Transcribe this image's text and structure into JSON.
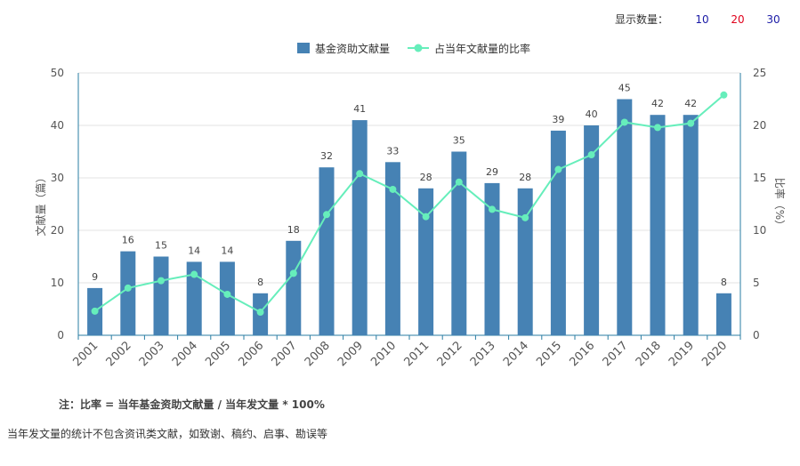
{
  "controls": {
    "label": "显示数量：",
    "options": [
      {
        "text": "10",
        "color": "#1a1aa6"
      },
      {
        "text": "20",
        "color": "#e0001b"
      },
      {
        "text": "30",
        "color": "#1a1aa6"
      }
    ]
  },
  "chart_data": {
    "type": "bar",
    "categories": [
      "2001",
      "2002",
      "2003",
      "2004",
      "2005",
      "2006",
      "2007",
      "2008",
      "2009",
      "2010",
      "2011",
      "2012",
      "2013",
      "2014",
      "2015",
      "2016",
      "2017",
      "2018",
      "2019",
      "2020"
    ],
    "series": [
      {
        "name": "基金资助文献量",
        "type": "bar",
        "axis": "left",
        "color": "#4682b4",
        "values": [
          9,
          16,
          15,
          14,
          14,
          8,
          18,
          32,
          41,
          33,
          28,
          35,
          29,
          28,
          39,
          40,
          45,
          42,
          42,
          8
        ]
      },
      {
        "name": "占当年文献量的比率",
        "type": "line",
        "axis": "right",
        "color": "#66eebb",
        "values": [
          2.3,
          4.5,
          5.2,
          5.8,
          3.9,
          2.2,
          5.9,
          11.5,
          15.4,
          13.9,
          11.3,
          14.6,
          12.0,
          11.2,
          15.8,
          17.2,
          20.3,
          19.8,
          20.2,
          22.9
        ]
      }
    ],
    "ylabel": "文献量（篇）",
    "ylabel_right": "比率（%）",
    "ylim": [
      0,
      50
    ],
    "yticks": [
      0,
      10,
      20,
      30,
      40,
      50
    ],
    "ylim_right": [
      0,
      25
    ],
    "yticks_right": [
      0,
      5,
      10,
      15,
      20,
      25
    ],
    "grid": true,
    "legend": "top-center",
    "show_bar_labels": true
  },
  "notes": {
    "formula": "注：比率 = 当年基金资助文献量 / 当年发文量 * 100%",
    "exclusion": "当年发文量的统计不包含资讯类文献，如致谢、稿约、启事、勘误等"
  }
}
